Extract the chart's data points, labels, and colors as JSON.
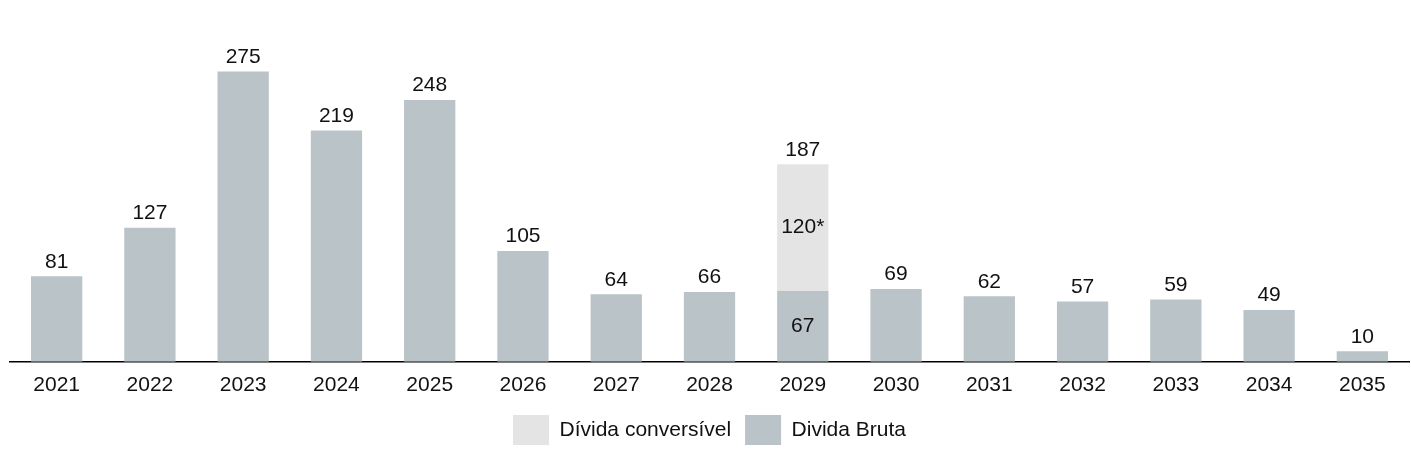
{
  "chart_data": {
    "type": "bar",
    "stacked": true,
    "legend": "bottom",
    "grid": false,
    "tick_labels": "x",
    "categories": [
      "2021",
      "2022",
      "2023",
      "2024",
      "2025",
      "2026",
      "2027",
      "2028",
      "2029",
      "2030",
      "2031",
      "2032",
      "2033",
      "2034",
      "2035"
    ],
    "series": [
      {
        "name": "Divida Bruta",
        "color": "#b9c3c8",
        "values": [
          81,
          127,
          275,
          219,
          248,
          105,
          64,
          66,
          67,
          69,
          62,
          57,
          59,
          49,
          10
        ],
        "value_labels": [
          "81",
          "127",
          "275",
          "219",
          "248",
          "105",
          "64",
          "66",
          "67",
          "69",
          "62",
          "57",
          "59",
          "49",
          "10"
        ]
      },
      {
        "name": "Dívida conversível",
        "color": "#e4e4e4",
        "values": [
          null,
          null,
          null,
          null,
          null,
          null,
          null,
          null,
          120,
          null,
          null,
          null,
          null,
          null,
          null
        ],
        "value_labels": [
          null,
          null,
          null,
          null,
          null,
          null,
          null,
          null,
          "120*",
          null,
          null,
          null,
          null,
          null,
          null
        ]
      }
    ],
    "totals": [
      null,
      null,
      null,
      null,
      null,
      null,
      null,
      null,
      "187",
      null,
      null,
      null,
      null,
      null,
      null
    ]
  }
}
